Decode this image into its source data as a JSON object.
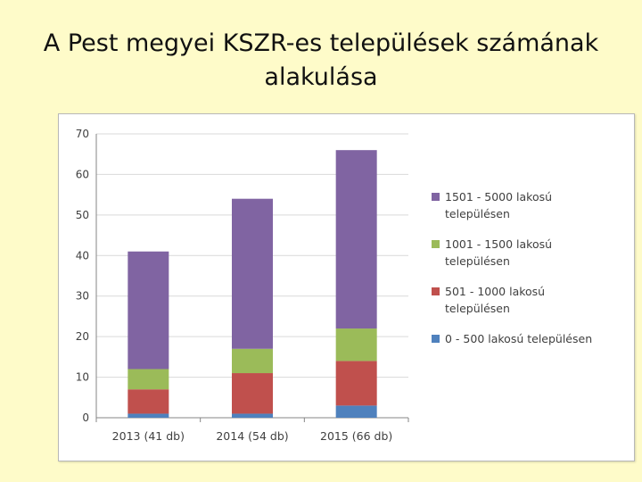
{
  "slide": {
    "title_line1": "A Pest megyei KSZR-es települések számának",
    "title_line2": "alakulása"
  },
  "chart_data": {
    "type": "bar",
    "stacked": true,
    "categories": [
      "2013 (41 db)",
      "2014 (54 db)",
      "2015 (66 db)"
    ],
    "series": [
      {
        "name": "0 - 500 lakosú településen",
        "color": "#4f81bd",
        "values": [
          1,
          1,
          3
        ]
      },
      {
        "name": "501 - 1000 lakosú településen",
        "color": "#c0504d",
        "values": [
          6,
          10,
          11
        ]
      },
      {
        "name": "1001 - 1500 lakosú településen",
        "color": "#9bbb59",
        "values": [
          5,
          6,
          8
        ]
      },
      {
        "name": "1501 - 5000 lakosú településen",
        "color": "#8064a2",
        "values": [
          29,
          37,
          44
        ]
      }
    ],
    "ylim": [
      0,
      70
    ],
    "yticks": [
      0,
      10,
      20,
      30,
      40,
      50,
      60,
      70
    ],
    "grid": true,
    "legend_position": "right",
    "legend": [
      {
        "line1": "1501 - 5000 lakosú",
        "line2": "településen",
        "color": "#8064a2"
      },
      {
        "line1": "1001 - 1500 lakosú",
        "line2": "településen",
        "color": "#9bbb59"
      },
      {
        "line1": "501 - 1000 lakosú",
        "line2": "településen",
        "color": "#c0504d"
      },
      {
        "line1": "0 - 500 lakosú  településen",
        "line2": "",
        "color": "#4f81bd"
      }
    ]
  }
}
